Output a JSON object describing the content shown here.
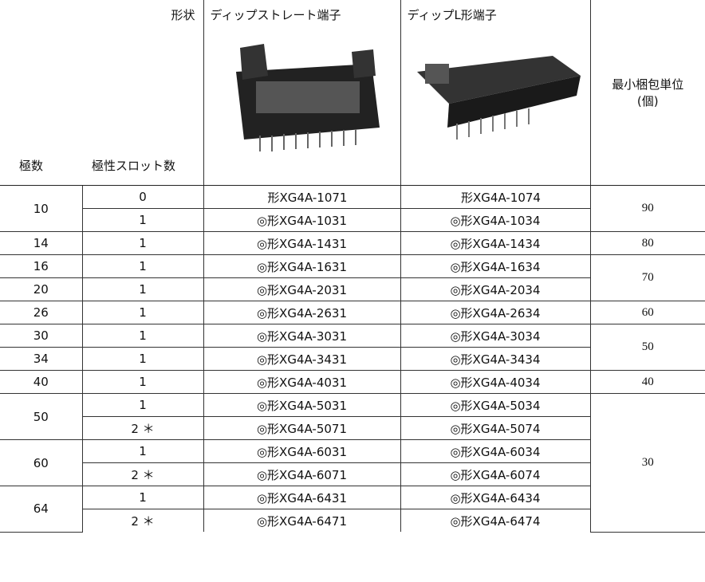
{
  "header": {
    "shape_label": "形状",
    "poles_label": "極数",
    "slots_label": "極性スロット数",
    "straight_label": "ディップストレート端子",
    "l_label": "ディップL形端子",
    "pack_label": "最小梱包単位",
    "pack_unit": "(個)"
  },
  "table": {
    "rows": [
      {
        "poles": 10,
        "slots": "0",
        "straight": "形XG4A-1071",
        "l": "形XG4A-1074",
        "pack": 90
      },
      {
        "poles": null,
        "slots": "1",
        "straight": "◎形XG4A-1031",
        "l": "◎形XG4A-1034",
        "pack": null
      },
      {
        "poles": 14,
        "slots": "1",
        "straight": "◎形XG4A-1431",
        "l": "◎形XG4A-1434",
        "pack": 80
      },
      {
        "poles": 16,
        "slots": "1",
        "straight": "◎形XG4A-1631",
        "l": "◎形XG4A-1634",
        "pack": 70
      },
      {
        "poles": 20,
        "slots": "1",
        "straight": "◎形XG4A-2031",
        "l": "◎形XG4A-2034",
        "pack": null
      },
      {
        "poles": 26,
        "slots": "1",
        "straight": "◎形XG4A-2631",
        "l": "◎形XG4A-2634",
        "pack": 60
      },
      {
        "poles": 30,
        "slots": "1",
        "straight": "◎形XG4A-3031",
        "l": "◎形XG4A-3034",
        "pack": 50
      },
      {
        "poles": 34,
        "slots": "1",
        "straight": "◎形XG4A-3431",
        "l": "◎形XG4A-3434",
        "pack": null
      },
      {
        "poles": 40,
        "slots": "1",
        "straight": "◎形XG4A-4031",
        "l": "◎形XG4A-4034",
        "pack": 40
      },
      {
        "poles": 50,
        "slots": "1",
        "straight": "◎形XG4A-5031",
        "l": "◎形XG4A-5034",
        "pack": 30
      },
      {
        "poles": null,
        "slots": "2 ＊",
        "straight": "◎形XG4A-5071",
        "l": "◎形XG4A-5074",
        "pack": null
      },
      {
        "poles": 60,
        "slots": "1",
        "straight": "◎形XG4A-6031",
        "l": "◎形XG4A-6034",
        "pack": null
      },
      {
        "poles": null,
        "slots": "2 ＊",
        "straight": "◎形XG4A-6071",
        "l": "◎形XG4A-6074",
        "pack": null
      },
      {
        "poles": 64,
        "slots": "1",
        "straight": "◎形XG4A-6431",
        "l": "◎形XG4A-6434",
        "pack": null
      },
      {
        "poles": null,
        "slots": "2 ＊",
        "straight": "◎形XG4A-6471",
        "l": "◎形XG4A-6474",
        "pack": null
      }
    ]
  }
}
